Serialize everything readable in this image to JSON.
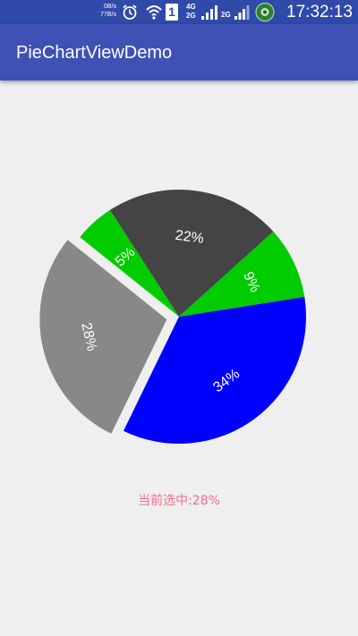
{
  "status_bar": {
    "net_speed_down": "0B/s",
    "net_speed_up": "77B/s",
    "sim_slot": "1",
    "network_primary": "4G",
    "network_secondary": "2G",
    "network_tertiary": "2G",
    "time": "17:32:13",
    "icons": [
      "alarm-icon",
      "wifi-icon",
      "signal-icon",
      "signal-icon",
      "app-notification-icon"
    ]
  },
  "app_bar": {
    "title": "PieChartViewDemo"
  },
  "colors": {
    "status_bar": "#2f4aa9",
    "app_bar": "#3f51b5",
    "background": "#efefef",
    "label_text": "#ffffff",
    "selected_text": "#ee6e8a"
  },
  "chart_data": {
    "type": "pie",
    "start_angle_deg": -9,
    "selected_index": 1,
    "slices": [
      {
        "label": "34%",
        "value": 34,
        "color": "#0000ff"
      },
      {
        "label": "28%",
        "value": 28,
        "color": "#888888"
      },
      {
        "label": "5%",
        "value": 5,
        "color": "#00cc00"
      },
      {
        "label": "22%",
        "value": 22,
        "color": "#444444"
      },
      {
        "label": "9%",
        "value": 9,
        "color": "#00cc00"
      }
    ]
  },
  "selection": {
    "text": "当前选中:28%"
  }
}
